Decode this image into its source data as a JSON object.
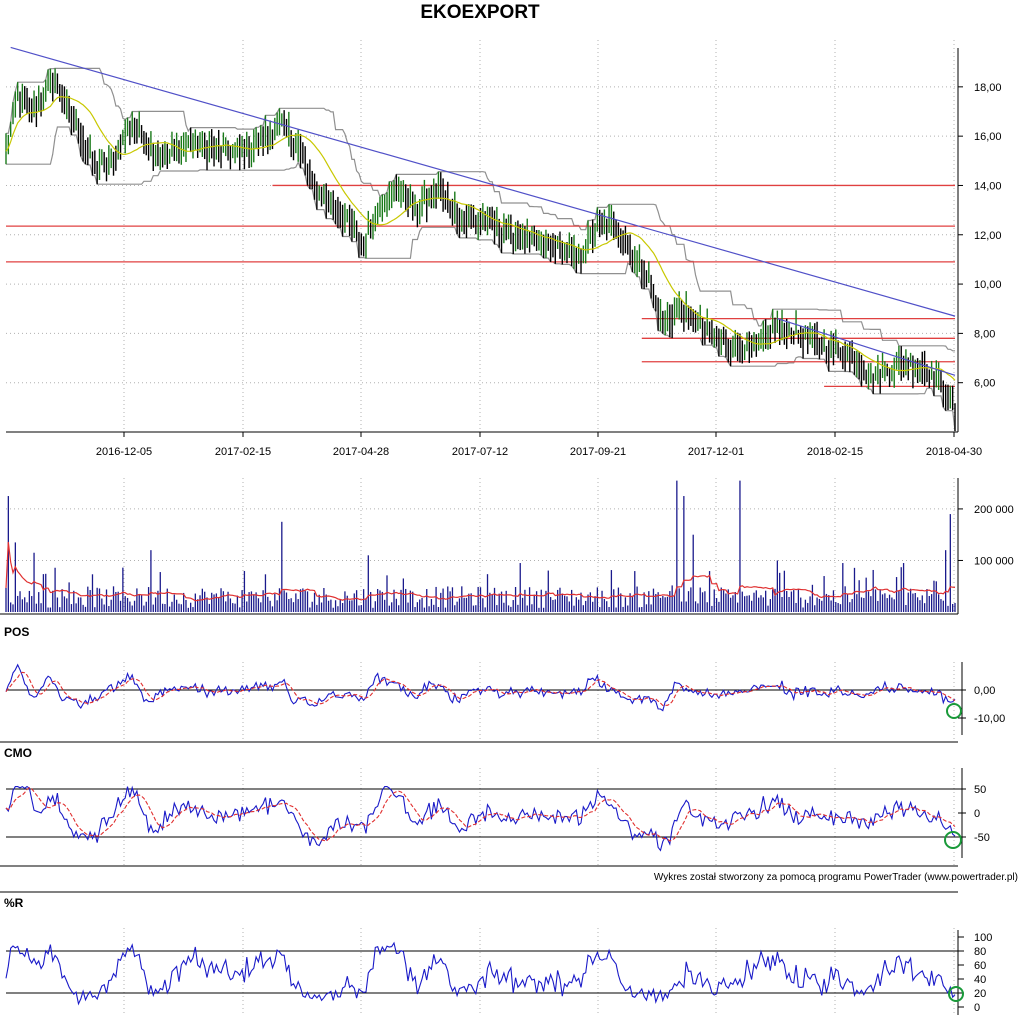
{
  "title": "EKOEXPORT",
  "credit": "Wykres został stworzony za pomocą programu PowerTrader (www.powertrader.pl)",
  "colors": {
    "candle_up": "#1a7a1a",
    "candle_down": "#000000",
    "trendline": "#5050c8",
    "support_line": "#e04040",
    "moving_average": "#c8c800",
    "envelope": "#909090",
    "volume_bar": "#1a1a8c",
    "volume_avg": "#e03030",
    "oscillator": "#1a1ac8",
    "signal": "#e03030",
    "marker": "#1a9a3a"
  },
  "chart_data": [
    {
      "panel": "price",
      "type": "candlestick",
      "x_tick_labels": [
        "2016-12-05",
        "2017-02-15",
        "2017-04-28",
        "2017-07-12",
        "2017-09-21",
        "2017-12-01",
        "2018-02-15",
        "2018-04-30"
      ],
      "y_tick_labels": [
        "6,00",
        "8,00",
        "10,00",
        "12,00",
        "14,00",
        "16,00",
        "18,00"
      ],
      "ylim": [
        4.0,
        19.9
      ],
      "grid": true,
      "close_anchors": [
        {
          "day": 0,
          "close": 15.3
        },
        {
          "day": 5,
          "close": 17.6
        },
        {
          "day": 12,
          "close": 17.0
        },
        {
          "day": 20,
          "close": 18.3
        },
        {
          "day": 28,
          "close": 16.8
        },
        {
          "day": 38,
          "close": 14.8
        },
        {
          "day": 46,
          "close": 15.0
        },
        {
          "day": 54,
          "close": 16.6
        },
        {
          "day": 62,
          "close": 15.4
        },
        {
          "day": 70,
          "close": 15.2
        },
        {
          "day": 80,
          "close": 15.8
        },
        {
          "day": 90,
          "close": 15.5
        },
        {
          "day": 100,
          "close": 15.3
        },
        {
          "day": 110,
          "close": 15.9
        },
        {
          "day": 118,
          "close": 16.5
        },
        {
          "day": 125,
          "close": 15.6
        },
        {
          "day": 132,
          "close": 13.8
        },
        {
          "day": 140,
          "close": 13.2
        },
        {
          "day": 148,
          "close": 12.3
        },
        {
          "day": 153,
          "close": 11.6
        },
        {
          "day": 160,
          "close": 13.2
        },
        {
          "day": 168,
          "close": 13.9
        },
        {
          "day": 176,
          "close": 13.0
        },
        {
          "day": 185,
          "close": 13.8
        },
        {
          "day": 195,
          "close": 12.6
        },
        {
          "day": 205,
          "close": 12.5
        },
        {
          "day": 215,
          "close": 12.1
        },
        {
          "day": 225,
          "close": 11.7
        },
        {
          "day": 235,
          "close": 11.5
        },
        {
          "day": 245,
          "close": 11.0
        },
        {
          "day": 252,
          "close": 12.2
        },
        {
          "day": 262,
          "close": 12.4
        },
        {
          "day": 268,
          "close": 11.2
        },
        {
          "day": 275,
          "close": 10.2
        },
        {
          "day": 281,
          "close": 8.3
        },
        {
          "day": 287,
          "close": 8.9
        },
        {
          "day": 295,
          "close": 8.6
        },
        {
          "day": 303,
          "close": 7.8
        },
        {
          "day": 311,
          "close": 7.6
        },
        {
          "day": 320,
          "close": 7.3
        },
        {
          "day": 330,
          "close": 8.3
        },
        {
          "day": 340,
          "close": 7.9
        },
        {
          "day": 350,
          "close": 7.5
        },
        {
          "day": 360,
          "close": 7.2
        },
        {
          "day": 370,
          "close": 6.3
        },
        {
          "day": 378,
          "close": 6.6
        },
        {
          "day": 386,
          "close": 6.8
        },
        {
          "day": 394,
          "close": 6.6
        },
        {
          "day": 400,
          "close": 6.0
        },
        {
          "day": 406,
          "close": 4.8
        }
      ],
      "trendlines": [
        {
          "from": {
            "day": 2,
            "price": 19.6
          },
          "to": {
            "day": 406,
            "price": 8.7
          }
        },
        {
          "from": {
            "day": 330,
            "price": 8.6
          },
          "to": {
            "day": 406,
            "price": 6.3
          }
        }
      ],
      "horizontal_levels": [
        {
          "price": 14.0,
          "from_day": 114,
          "to_day": 406
        },
        {
          "price": 12.35,
          "from_day": 0,
          "to_day": 406
        },
        {
          "price": 10.9,
          "from_day": 0,
          "to_day": 406
        },
        {
          "price": 8.6,
          "from_day": 272,
          "to_day": 406
        },
        {
          "price": 7.8,
          "from_day": 272,
          "to_day": 406
        },
        {
          "price": 6.85,
          "from_day": 272,
          "to_day": 406
        },
        {
          "price": 5.85,
          "from_day": 350,
          "to_day": 406
        }
      ]
    },
    {
      "panel": "volume",
      "type": "bar",
      "y_tick_labels": [
        "100 000",
        "200 000"
      ],
      "ylim": [
        0,
        260000
      ],
      "spikes": [
        {
          "day": 1,
          "value": 225000
        },
        {
          "day": 4,
          "value": 135000
        },
        {
          "day": 12,
          "value": 115000
        },
        {
          "day": 62,
          "value": 120000
        },
        {
          "day": 118,
          "value": 175000
        },
        {
          "day": 155,
          "value": 110000
        },
        {
          "day": 220,
          "value": 95000
        },
        {
          "day": 287,
          "value": 255000
        },
        {
          "day": 290,
          "value": 225000
        },
        {
          "day": 294,
          "value": 150000
        },
        {
          "day": 314,
          "value": 255000
        },
        {
          "day": 330,
          "value": 100000
        },
        {
          "day": 358,
          "value": 95000
        },
        {
          "day": 384,
          "value": 95000
        },
        {
          "day": 402,
          "value": 120000
        },
        {
          "day": 404,
          "value": 190000
        }
      ]
    },
    {
      "panel": "POS",
      "type": "line",
      "y_tick_labels": [
        "0,00",
        "-10,00"
      ],
      "zero_line": 0
    },
    {
      "panel": "CMO",
      "type": "line",
      "y_tick_labels": [
        "50",
        "0",
        "-50"
      ],
      "reference_lines": [
        50,
        -50
      ]
    },
    {
      "panel": "%R",
      "type": "line",
      "y_tick_labels": [
        "100",
        "80",
        "60",
        "40",
        "20",
        "0"
      ],
      "reference_lines": [
        80,
        20
      ]
    }
  ],
  "panels": {
    "pos_label": "POS",
    "cmo_label": "CMO",
    "r_label": "%R"
  }
}
